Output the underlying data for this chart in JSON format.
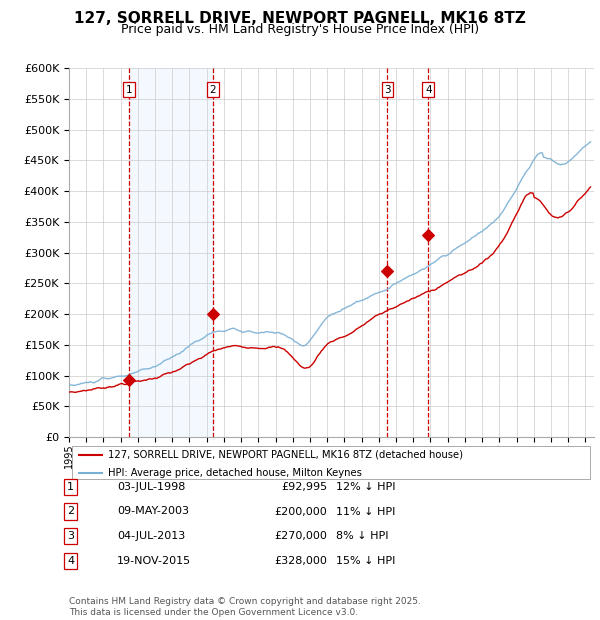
{
  "title": "127, SORRELL DRIVE, NEWPORT PAGNELL, MK16 8TZ",
  "subtitle": "Price paid vs. HM Land Registry's House Price Index (HPI)",
  "title_fontsize": 11,
  "subtitle_fontsize": 9,
  "legend_line1": "127, SORRELL DRIVE, NEWPORT PAGNELL, MK16 8TZ (detached house)",
  "legend_line2": "HPI: Average price, detached house, Milton Keynes",
  "red_color": "#cc0000",
  "blue_color": "#7aafd4",
  "background_color": "#ffffff",
  "grid_color": "#cccccc",
  "shade_color": "#ddeeff",
  "transaction_dashed_color": "#cc0000",
  "ylim": [
    0,
    600000
  ],
  "yticks": [
    0,
    50000,
    100000,
    150000,
    200000,
    250000,
    300000,
    350000,
    400000,
    450000,
    500000,
    550000,
    600000
  ],
  "transactions": [
    {
      "num": 1,
      "date_label": "03-JUL-1998",
      "year": 1998.5,
      "price": 92995,
      "pct": "12%",
      "arrow": "↓"
    },
    {
      "num": 2,
      "date_label": "09-MAY-2003",
      "year": 2003.36,
      "price": 200000,
      "pct": "11%",
      "arrow": "↓"
    },
    {
      "num": 3,
      "date_label": "04-JUL-2013",
      "year": 2013.5,
      "price": 270000,
      "pct": "8%",
      "arrow": "↓"
    },
    {
      "num": 4,
      "date_label": "19-NOV-2015",
      "year": 2015.88,
      "price": 328000,
      "pct": "15%",
      "arrow": "↓"
    }
  ],
  "footnote": "Contains HM Land Registry data © Crown copyright and database right 2025.\nThis data is licensed under the Open Government Licence v3.0.",
  "footnote_fontsize": 6.5
}
